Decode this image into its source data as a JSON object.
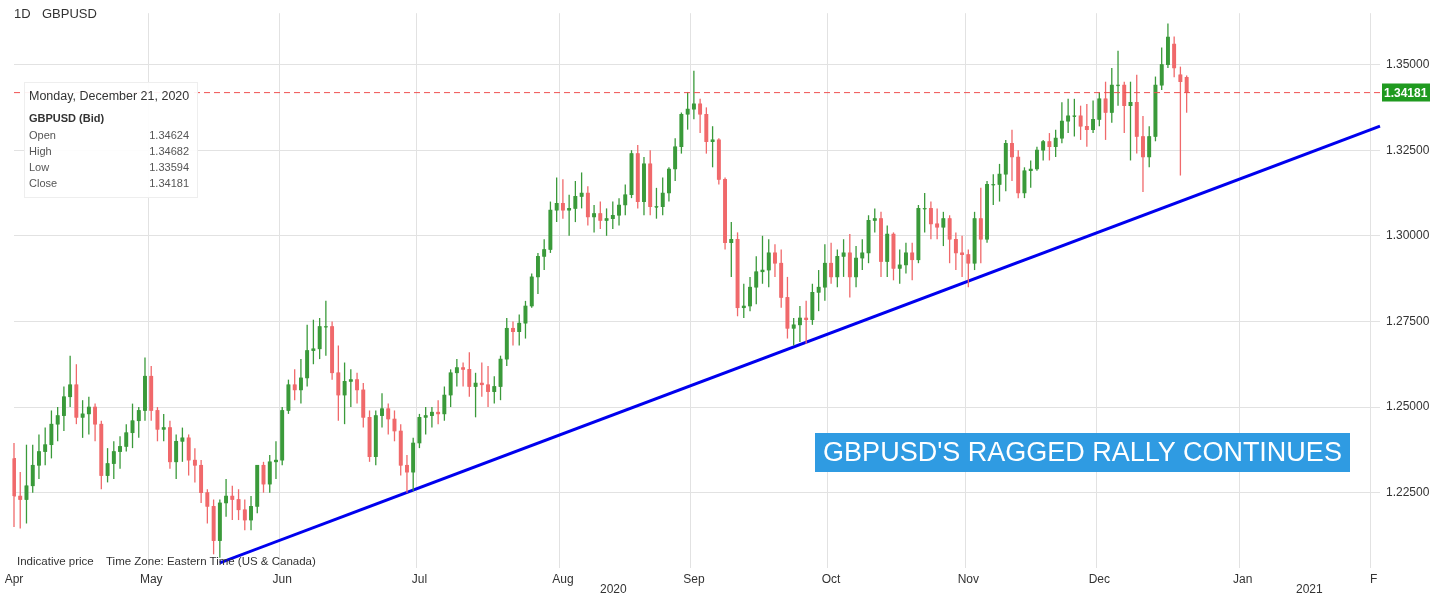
{
  "chart_data": {
    "type": "candlestick",
    "title": "1D",
    "subtitle": "GBPUSD",
    "categories": [
      "Apr",
      null,
      null,
      null,
      null,
      null,
      null,
      null,
      null,
      null,
      null,
      null,
      null,
      null,
      null,
      null,
      null,
      null,
      null,
      null,
      null,
      null,
      "May",
      null,
      null,
      null,
      null,
      null,
      null,
      null,
      null,
      null,
      null,
      null,
      null,
      null,
      null,
      null,
      null,
      null,
      null,
      null,
      null,
      "Jun",
      null,
      null,
      null,
      null,
      null,
      null,
      null,
      null,
      null,
      null,
      null,
      null,
      null,
      null,
      null,
      null,
      null,
      null,
      null,
      null,
      null,
      "Jul",
      null,
      null,
      null,
      null,
      null,
      null,
      null,
      null,
      null,
      null,
      null,
      null,
      null,
      null,
      null,
      null,
      null,
      null,
      null,
      null,
      null,
      null,
      "Aug",
      null,
      null,
      null,
      null,
      null,
      null,
      null,
      null,
      null,
      null,
      null,
      null,
      null,
      null,
      null,
      null,
      null,
      null,
      null,
      null,
      "Sep",
      null,
      null,
      null,
      null,
      null,
      null,
      null,
      null,
      null,
      null,
      null,
      null,
      null,
      null,
      null,
      null,
      null,
      null,
      null,
      null,
      null,
      "Oct",
      null,
      null,
      null,
      null,
      null,
      null,
      null,
      null,
      null,
      null,
      null,
      null,
      null,
      null,
      null,
      null,
      null,
      null,
      null,
      null,
      null,
      "Nov",
      null,
      null,
      null,
      null,
      null,
      null,
      null,
      null,
      null,
      null,
      null,
      null,
      null,
      null,
      null,
      null,
      null,
      null,
      null,
      null,
      "Dec",
      null,
      null,
      null,
      null,
      null,
      null,
      null,
      null,
      null,
      null,
      null,
      null,
      null,
      null,
      null,
      null,
      null,
      null,
      null,
      null,
      null,
      null,
      "Jan",
      null,
      null,
      null,
      null,
      null,
      null,
      null,
      null,
      null,
      null,
      null,
      null,
      null,
      null,
      null,
      null,
      null,
      null,
      null,
      null,
      "F",
      null
    ],
    "ohlc": [
      [
        1.235,
        1.2395,
        1.215,
        1.224
      ],
      [
        1.224,
        1.231,
        1.2145,
        1.223
      ],
      [
        1.223,
        1.239,
        1.216,
        1.227
      ],
      [
        1.227,
        1.239,
        1.225,
        1.233
      ],
      [
        1.233,
        1.242,
        1.229,
        1.237
      ],
      [
        1.237,
        1.244,
        1.233,
        1.239
      ],
      [
        1.239,
        1.249,
        1.235,
        1.245
      ],
      [
        1.245,
        1.25,
        1.24,
        1.2475
      ],
      [
        1.2475,
        1.256,
        1.243,
        1.253
      ],
      [
        1.253,
        1.265,
        1.25,
        1.2565
      ],
      [
        1.2565,
        1.2625,
        1.245,
        1.247
      ],
      [
        1.247,
        1.252,
        1.241,
        1.248
      ],
      [
        1.248,
        1.253,
        1.242,
        1.25
      ],
      [
        1.25,
        1.251,
        1.24,
        1.245
      ],
      [
        1.245,
        1.246,
        1.226,
        1.23
      ],
      [
        1.23,
        1.238,
        1.228,
        1.2335
      ],
      [
        1.2335,
        1.24,
        1.229,
        1.237
      ],
      [
        1.237,
        1.2415,
        1.232,
        1.2385
      ],
      [
        1.2385,
        1.245,
        1.237,
        1.2425
      ],
      [
        1.2425,
        1.251,
        1.238,
        1.246
      ],
      [
        1.246,
        1.25,
        1.241,
        1.249
      ],
      [
        1.249,
        1.2645,
        1.246,
        1.259
      ],
      [
        1.259,
        1.262,
        1.246,
        1.249
      ],
      [
        1.249,
        1.25,
        1.24,
        1.2435
      ],
      [
        1.2435,
        1.248,
        1.24,
        1.244
      ],
      [
        1.244,
        1.246,
        1.232,
        1.234
      ],
      [
        1.234,
        1.242,
        1.229,
        1.24
      ],
      [
        1.24,
        1.244,
        1.234,
        1.241
      ],
      [
        1.241,
        1.242,
        1.23,
        1.2345
      ],
      [
        1.2345,
        1.238,
        1.228,
        1.233
      ],
      [
        1.233,
        1.2345,
        1.222,
        1.225
      ],
      [
        1.225,
        1.226,
        1.216,
        1.221
      ],
      [
        1.221,
        1.223,
        1.207,
        1.211
      ],
      [
        1.211,
        1.223,
        1.206,
        1.222
      ],
      [
        1.222,
        1.229,
        1.218,
        1.224
      ],
      [
        1.224,
        1.227,
        1.217,
        1.223
      ],
      [
        1.223,
        1.226,
        1.217,
        1.22
      ],
      [
        1.22,
        1.223,
        1.214,
        1.217
      ],
      [
        1.217,
        1.224,
        1.214,
        1.221
      ],
      [
        1.221,
        1.233,
        1.219,
        1.233
      ],
      [
        1.233,
        1.234,
        1.225,
        1.2275
      ],
      [
        1.2275,
        1.236,
        1.225,
        1.234
      ],
      [
        1.234,
        1.24,
        1.229,
        1.2345
      ],
      [
        1.2345,
        1.25,
        1.233,
        1.249
      ],
      [
        1.249,
        1.258,
        1.248,
        1.2565
      ],
      [
        1.2565,
        1.261,
        1.252,
        1.255
      ],
      [
        1.255,
        1.264,
        1.251,
        1.2585
      ],
      [
        1.2585,
        1.274,
        1.256,
        1.2665
      ],
      [
        1.2665,
        1.2755,
        1.2625,
        1.267
      ],
      [
        1.267,
        1.276,
        1.264,
        1.2735
      ],
      [
        1.2735,
        1.281,
        1.265,
        1.2735
      ],
      [
        1.2735,
        1.275,
        1.258,
        1.26
      ],
      [
        1.26,
        1.268,
        1.246,
        1.2535
      ],
      [
        1.2535,
        1.263,
        1.245,
        1.2575
      ],
      [
        1.2575,
        1.261,
        1.25,
        1.258
      ],
      [
        1.258,
        1.26,
        1.251,
        1.255
      ],
      [
        1.255,
        1.257,
        1.244,
        1.247
      ],
      [
        1.247,
        1.249,
        1.234,
        1.2355
      ],
      [
        1.2355,
        1.249,
        1.233,
        1.2475
      ],
      [
        1.2475,
        1.254,
        1.244,
        1.2495
      ],
      [
        1.2495,
        1.251,
        1.242,
        1.2465
      ],
      [
        1.2465,
        1.249,
        1.24,
        1.243
      ],
      [
        1.243,
        1.245,
        1.23,
        1.233
      ],
      [
        1.233,
        1.236,
        1.225,
        1.231
      ],
      [
        1.231,
        1.241,
        1.2255,
        1.2395
      ],
      [
        1.2395,
        1.248,
        1.238,
        1.247
      ],
      [
        1.247,
        1.25,
        1.242,
        1.2475
      ],
      [
        1.2475,
        1.25,
        1.244,
        1.2485
      ],
      [
        1.2485,
        1.252,
        1.245,
        1.248
      ],
      [
        1.248,
        1.256,
        1.246,
        1.2535
      ],
      [
        1.2535,
        1.261,
        1.25,
        1.26
      ],
      [
        1.26,
        1.264,
        1.256,
        1.2615
      ],
      [
        1.2615,
        1.263,
        1.256,
        1.261
      ],
      [
        1.261,
        1.266,
        1.253,
        1.256
      ],
      [
        1.256,
        1.26,
        1.247,
        1.257
      ],
      [
        1.257,
        1.263,
        1.253,
        1.2565
      ],
      [
        1.2565,
        1.262,
        1.25,
        1.2545
      ],
      [
        1.2545,
        1.259,
        1.251,
        1.256
      ],
      [
        1.256,
        1.265,
        1.252,
        1.264
      ],
      [
        1.264,
        1.276,
        1.262,
        1.273
      ],
      [
        1.273,
        1.275,
        1.268,
        1.272
      ],
      [
        1.272,
        1.277,
        1.268,
        1.2745
      ],
      [
        1.2745,
        1.281,
        1.27,
        1.2795
      ],
      [
        1.2795,
        1.289,
        1.279,
        1.288
      ],
      [
        1.288,
        1.295,
        1.283,
        1.294
      ],
      [
        1.294,
        1.299,
        1.29,
        1.296
      ],
      [
        1.296,
        1.31,
        1.295,
        1.3075
      ],
      [
        1.3075,
        1.317,
        1.304,
        1.3095
      ],
      [
        1.3095,
        1.3165,
        1.305,
        1.3075
      ],
      [
        1.3075,
        1.312,
        1.3,
        1.308
      ],
      [
        1.308,
        1.316,
        1.304,
        1.3115
      ],
      [
        1.3115,
        1.3185,
        1.308,
        1.3125
      ],
      [
        1.3125,
        1.3145,
        1.303,
        1.3055
      ],
      [
        1.3055,
        1.309,
        1.301,
        1.3065
      ],
      [
        1.3065,
        1.31,
        1.302,
        1.3045
      ],
      [
        1.3045,
        1.308,
        1.3,
        1.305
      ],
      [
        1.305,
        1.31,
        1.302,
        1.306
      ],
      [
        1.306,
        1.311,
        1.303,
        1.309
      ],
      [
        1.309,
        1.315,
        1.306,
        1.312
      ],
      [
        1.312,
        1.325,
        1.311,
        1.324
      ],
      [
        1.324,
        1.3265,
        1.308,
        1.31
      ],
      [
        1.31,
        1.323,
        1.306,
        1.321
      ],
      [
        1.321,
        1.325,
        1.306,
        1.3085
      ],
      [
        1.3085,
        1.314,
        1.305,
        1.3085
      ],
      [
        1.3085,
        1.317,
        1.306,
        1.3125
      ],
      [
        1.3125,
        1.32,
        1.31,
        1.3195
      ],
      [
        1.3195,
        1.3285,
        1.316,
        1.326
      ],
      [
        1.326,
        1.336,
        1.324,
        1.3355
      ],
      [
        1.3355,
        1.342,
        1.331,
        1.337
      ],
      [
        1.337,
        1.3482,
        1.334,
        1.3385
      ],
      [
        1.3385,
        1.34,
        1.33,
        1.3355
      ],
      [
        1.3355,
        1.3375,
        1.324,
        1.3275
      ],
      [
        1.3275,
        1.332,
        1.32,
        1.328
      ],
      [
        1.328,
        1.3285,
        1.315,
        1.3165
      ],
      [
        1.3165,
        1.317,
        1.296,
        1.298
      ],
      [
        1.298,
        1.304,
        1.288,
        1.299
      ],
      [
        1.299,
        1.301,
        1.2765,
        1.279
      ],
      [
        1.279,
        1.286,
        1.276,
        1.2795
      ],
      [
        1.2795,
        1.288,
        1.278,
        1.285
      ],
      [
        1.285,
        1.294,
        1.28,
        1.2895
      ],
      [
        1.2895,
        1.3,
        1.286,
        1.29
      ],
      [
        1.29,
        1.299,
        1.285,
        1.295
      ],
      [
        1.295,
        1.2975,
        1.288,
        1.292
      ],
      [
        1.292,
        1.296,
        1.279,
        1.282
      ],
      [
        1.282,
        1.288,
        1.27,
        1.273
      ],
      [
        1.273,
        1.276,
        1.268,
        1.274
      ],
      [
        1.274,
        1.2795,
        1.269,
        1.276
      ],
      [
        1.276,
        1.281,
        1.2685,
        1.2755
      ],
      [
        1.2755,
        1.286,
        1.274,
        1.2835
      ],
      [
        1.2835,
        1.29,
        1.278,
        1.285
      ],
      [
        1.285,
        1.2975,
        1.281,
        1.292
      ],
      [
        1.292,
        1.298,
        1.286,
        1.288
      ],
      [
        1.288,
        1.296,
        1.285,
        1.294
      ],
      [
        1.294,
        1.299,
        1.288,
        1.295
      ],
      [
        1.295,
        1.3005,
        1.282,
        1.288
      ],
      [
        1.288,
        1.297,
        1.285,
        1.2935
      ],
      [
        1.2935,
        1.299,
        1.29,
        1.295
      ],
      [
        1.295,
        1.306,
        1.292,
        1.3045
      ],
      [
        1.3045,
        1.308,
        1.301,
        1.305
      ],
      [
        1.305,
        1.307,
        1.288,
        1.2925
      ],
      [
        1.2925,
        1.303,
        1.288,
        1.3005
      ],
      [
        1.3005,
        1.301,
        1.287,
        1.2905
      ],
      [
        1.2905,
        1.296,
        1.286,
        1.2915
      ],
      [
        1.2915,
        1.298,
        1.289,
        1.295
      ],
      [
        1.295,
        1.298,
        1.287,
        1.293
      ],
      [
        1.293,
        1.309,
        1.292,
        1.308
      ],
      [
        1.308,
        1.3125,
        1.301,
        1.308
      ],
      [
        1.308,
        1.31,
        1.299,
        1.3035
      ],
      [
        1.3035,
        1.308,
        1.299,
        1.3025
      ],
      [
        1.3025,
        1.307,
        1.297,
        1.305
      ],
      [
        1.305,
        1.306,
        1.292,
        1.299
      ],
      [
        1.299,
        1.301,
        1.29,
        1.295
      ],
      [
        1.295,
        1.3,
        1.288,
        1.2945
      ],
      [
        1.2945,
        1.296,
        1.285,
        1.292
      ],
      [
        1.292,
        1.307,
        1.29,
        1.305
      ],
      [
        1.305,
        1.314,
        1.292,
        1.299
      ],
      [
        1.299,
        1.316,
        1.298,
        1.315
      ],
      [
        1.315,
        1.318,
        1.309,
        1.315
      ],
      [
        1.315,
        1.321,
        1.31,
        1.318
      ],
      [
        1.318,
        1.328,
        1.313,
        1.327
      ],
      [
        1.327,
        1.331,
        1.316,
        1.323
      ],
      [
        1.323,
        1.325,
        1.311,
        1.3125
      ],
      [
        1.3125,
        1.32,
        1.311,
        1.319
      ],
      [
        1.319,
        1.322,
        1.314,
        1.3195
      ],
      [
        1.3195,
        1.326,
        1.319,
        1.325
      ],
      [
        1.325,
        1.328,
        1.322,
        1.3275
      ],
      [
        1.3275,
        1.33,
        1.322,
        1.326
      ],
      [
        1.326,
        1.331,
        1.323,
        1.3285
      ],
      [
        1.3285,
        1.339,
        1.327,
        1.3335
      ],
      [
        1.3335,
        1.34,
        1.33,
        1.335
      ],
      [
        1.335,
        1.34,
        1.329,
        1.335
      ],
      [
        1.335,
        1.338,
        1.328,
        1.332
      ],
      [
        1.332,
        1.3385,
        1.326,
        1.331
      ],
      [
        1.331,
        1.3395,
        1.33,
        1.334
      ],
      [
        1.334,
        1.342,
        1.332,
        1.34
      ],
      [
        1.34,
        1.345,
        1.328,
        1.336
      ],
      [
        1.336,
        1.349,
        1.333,
        1.344
      ],
      [
        1.344,
        1.354,
        1.338,
        1.344
      ],
      [
        1.344,
        1.345,
        1.33,
        1.338
      ],
      [
        1.338,
        1.345,
        1.322,
        1.339
      ],
      [
        1.339,
        1.347,
        1.324,
        1.329
      ],
      [
        1.329,
        1.335,
        1.3128,
        1.323
      ],
      [
        1.323,
        1.332,
        1.32,
        1.329
      ],
      [
        1.329,
        1.3465,
        1.3276,
        1.344
      ],
      [
        1.344,
        1.355,
        1.3426,
        1.35
      ],
      [
        1.35,
        1.362,
        1.349,
        1.358
      ],
      [
        1.356,
        1.3582,
        1.3463,
        1.349
      ],
      [
        1.347,
        1.3494,
        1.3176,
        1.345
      ],
      [
        1.34624,
        1.34682,
        1.33594,
        1.34181
      ],
      null,
      null,
      null,
      null,
      null,
      null,
      null,
      null,
      null,
      null,
      null,
      null,
      null,
      null,
      null,
      null,
      null,
      null,
      null,
      null,
      null,
      null,
      null,
      null,
      null,
      null,
      null,
      null,
      null,
      null,
      null
    ],
    "colors": [
      "#f0696b",
      "#f0696b",
      "#3a9a3a",
      "#3a9a3a",
      "#3a9a3a",
      "#3a9a3a",
      "#3a9a3a",
      "#3a9a3a",
      "#3a9a3a",
      "#3a9a3a",
      "#f0696b",
      "#3a9a3a",
      "#3a9a3a",
      "#f0696b",
      "#f0696b",
      "#3a9a3a",
      "#3a9a3a",
      "#3a9a3a",
      "#3a9a3a",
      "#3a9a3a",
      "#3a9a3a",
      "#3a9a3a",
      "#f0696b",
      "#f0696b",
      "#3a9a3a",
      "#f0696b",
      "#3a9a3a",
      "#3a9a3a",
      "#f0696b",
      "#f0696b",
      "#f0696b",
      "#f0696b",
      "#f0696b",
      "#3a9a3a",
      "#3a9a3a",
      "#f0696b",
      "#f0696b",
      "#f0696b",
      "#3a9a3a",
      "#3a9a3a",
      "#f0696b",
      "#3a9a3a",
      "#3a9a3a",
      "#3a9a3a",
      "#3a9a3a",
      "#f0696b",
      "#3a9a3a",
      "#3a9a3a",
      "#3a9a3a",
      "#3a9a3a",
      "#3a9a3a",
      "#f0696b",
      "#f0696b",
      "#3a9a3a",
      "#3a9a3a",
      "#f0696b",
      "#f0696b",
      "#f0696b",
      "#3a9a3a",
      "#3a9a3a",
      "#f0696b",
      "#f0696b",
      "#f0696b",
      "#f0696b",
      "#3a9a3a",
      "#3a9a3a",
      "#3a9a3a",
      "#3a9a3a",
      "#f0696b",
      "#3a9a3a",
      "#3a9a3a",
      "#3a9a3a",
      "#f0696b",
      "#f0696b",
      "#3a9a3a",
      "#f0696b",
      "#f0696b",
      "#3a9a3a",
      "#3a9a3a",
      "#3a9a3a",
      "#f0696b",
      "#3a9a3a",
      "#3a9a3a",
      "#3a9a3a",
      "#3a9a3a",
      "#3a9a3a",
      "#3a9a3a",
      "#3a9a3a",
      "#f0696b",
      "#3a9a3a",
      "#3a9a3a",
      "#3a9a3a",
      "#f0696b",
      "#3a9a3a",
      "#f0696b",
      "#3a9a3a",
      "#3a9a3a",
      "#3a9a3a",
      "#3a9a3a",
      "#3a9a3a",
      "#f0696b",
      "#3a9a3a",
      "#f0696b",
      "#3a9a3a",
      "#3a9a3a",
      "#3a9a3a",
      "#3a9a3a",
      "#3a9a3a",
      "#3a9a3a",
      "#3a9a3a",
      "#f0696b",
      "#f0696b",
      "#3a9a3a",
      "#f0696b",
      "#f0696b",
      "#3a9a3a",
      "#f0696b",
      "#3a9a3a",
      "#3a9a3a",
      "#3a9a3a",
      "#3a9a3a",
      "#3a9a3a",
      "#f0696b",
      "#f0696b",
      "#f0696b",
      "#3a9a3a",
      "#3a9a3a",
      "#f0696b",
      "#3a9a3a",
      "#3a9a3a",
      "#3a9a3a",
      "#f0696b",
      "#3a9a3a",
      "#3a9a3a",
      "#f0696b",
      "#3a9a3a",
      "#3a9a3a",
      "#3a9a3a",
      "#3a9a3a",
      "#f0696b",
      "#3a9a3a",
      "#f0696b",
      "#3a9a3a",
      "#3a9a3a",
      "#f0696b",
      "#3a9a3a",
      "#3a9a3a",
      "#f0696b",
      "#f0696b",
      "#3a9a3a",
      "#f0696b",
      "#f0696b",
      "#f0696b",
      "#f0696b",
      "#3a9a3a",
      "#f0696b",
      "#3a9a3a",
      "#3a9a3a",
      "#3a9a3a",
      "#3a9a3a",
      "#f0696b",
      "#f0696b",
      "#3a9a3a",
      "#3a9a3a",
      "#3a9a3a",
      "#3a9a3a",
      "#f0696b",
      "#3a9a3a",
      "#3a9a3a",
      "#3a9a3a",
      "#3a9a3a",
      "#f0696b",
      "#f0696b",
      "#3a9a3a",
      "#3a9a3a",
      "#f0696b",
      "#3a9a3a",
      "#3a9a3a",
      "#f0696b",
      "#3a9a3a",
      "#f0696b",
      "#f0696b",
      "#3a9a3a",
      "#3a9a3a",
      "#3a9a3a",
      "#3a9a3a",
      "#f0696b",
      "#f0696b",
      "#f0696b",
      null,
      null,
      null,
      null,
      null,
      null,
      null,
      null,
      null,
      null,
      null,
      null,
      null,
      null,
      null,
      null,
      null,
      null,
      null,
      null,
      null,
      null,
      null,
      null,
      null,
      null,
      null,
      null,
      null,
      null,
      null
    ],
    "series": [
      {
        "type": "line",
        "color": "#0000ee",
        "values": [
          null,
          null,
          null,
          null,
          null,
          null,
          null,
          null,
          null,
          null,
          null,
          null,
          null,
          null,
          null,
          null,
          null,
          null,
          null,
          null,
          null,
          null,
          null,
          null,
          null,
          null,
          null,
          null,
          null,
          null,
          null,
          null,
          null,
          1.2045,
          null,
          null,
          null,
          null,
          null,
          null,
          null,
          null,
          null,
          null,
          null,
          null,
          null,
          null,
          null,
          null,
          null,
          null,
          null,
          null,
          null,
          null,
          null,
          null,
          null,
          null,
          null,
          null,
          null,
          null,
          null,
          null,
          null,
          null,
          null,
          null,
          null,
          null,
          null,
          null,
          null,
          null,
          null,
          null,
          null,
          null,
          null,
          null,
          null,
          null,
          null,
          null,
          null,
          null,
          null,
          null,
          null,
          null,
          null,
          null,
          null,
          null,
          null,
          null,
          null,
          null,
          null,
          null,
          null,
          null,
          null,
          null,
          null,
          null,
          null,
          null,
          null,
          null,
          null,
          null,
          null,
          null,
          null,
          null,
          null,
          null,
          null,
          null,
          null,
          null,
          null,
          null,
          null,
          null,
          null,
          null,
          null,
          null,
          null,
          null,
          null,
          null,
          null,
          null,
          null,
          null,
          null,
          null,
          null,
          null,
          null,
          null,
          null,
          null,
          null,
          null,
          null,
          null,
          null,
          null,
          null,
          null,
          null,
          null,
          null,
          null,
          null,
          null,
          null,
          null,
          null,
          null,
          null,
          null,
          null,
          null,
          null,
          null,
          null,
          null,
          null,
          null,
          null,
          null,
          null,
          null,
          null,
          null,
          null,
          null,
          null,
          null,
          null,
          null,
          null,
          null,
          null,
          null,
          null,
          null,
          null,
          null,
          null,
          null,
          null,
          null,
          null,
          null,
          null,
          null,
          null,
          null,
          null,
          null,
          null,
          null,
          null,
          null,
          null,
          null,
          null,
          null,
          null,
          null,
          null,
          1.332
        ]
      }
    ],
    "ylim": [
      1.203,
      1.365
    ],
    "yticks": [
      {
        "value": 1.225,
        "label": "1.22500"
      },
      {
        "value": 1.25,
        "label": "1.25000"
      },
      {
        "value": 1.275,
        "label": "1.27500"
      },
      {
        "value": 1.3,
        "label": "1.30000"
      },
      {
        "value": 1.325,
        "label": "1.32500"
      },
      {
        "value": 1.35,
        "label": "1.35000"
      }
    ],
    "grid": true,
    "ref_lines": [
      {
        "axis": "y",
        "value": 1.34181,
        "label": "1.34181",
        "color": "#f05050",
        "line_style": "dashed"
      }
    ],
    "annotations": [
      "Monday, December 21, 2020",
      "GBPUSD (Bid)",
      "Open",
      "1.34624",
      "High",
      "1.34682",
      "Low",
      "1.33594",
      "Close",
      "1.34181",
      "Indicative price",
      "Time Zone: Eastern Time (US & Canada)",
      "GBPUSD'S RAGGED RALLY CONTINUES",
      "2020",
      "2021"
    ]
  }
}
